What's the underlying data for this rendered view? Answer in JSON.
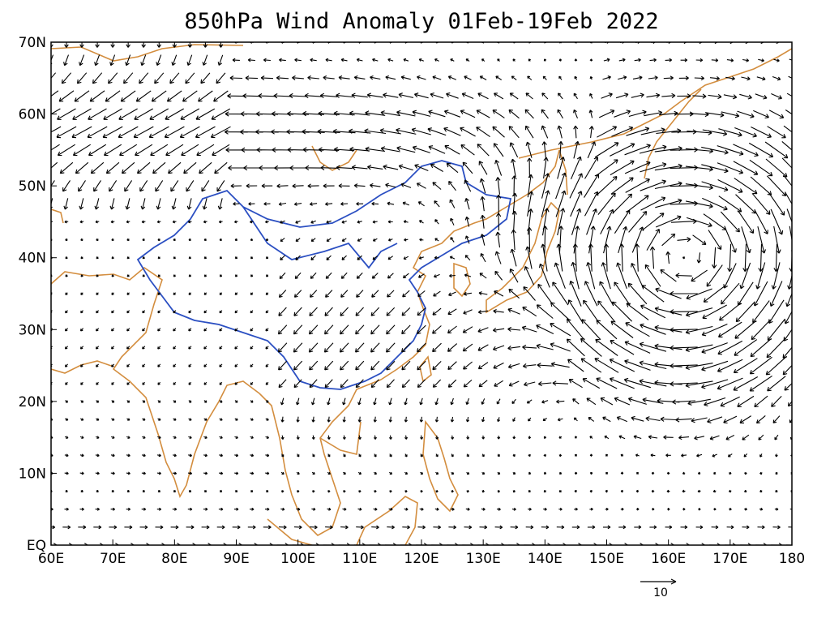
{
  "title": "850hPa Wind Anomaly 01Feb-19Feb 2022",
  "colors": {
    "coastline": "#d38d3e",
    "border": "#2b4fc2",
    "vectors": "#000000",
    "frame": "#000000"
  },
  "map": {
    "lon_range": [
      60,
      180
    ],
    "lat_range": [
      0,
      70
    ],
    "x_ticks": [
      {
        "value": 60,
        "label": "60E"
      },
      {
        "value": 70,
        "label": "70E"
      },
      {
        "value": 80,
        "label": "80E"
      },
      {
        "value": 90,
        "label": "90E"
      },
      {
        "value": 100,
        "label": "100E"
      },
      {
        "value": 110,
        "label": "110E"
      },
      {
        "value": 120,
        "label": "120E"
      },
      {
        "value": 130,
        "label": "130E"
      },
      {
        "value": 140,
        "label": "140E"
      },
      {
        "value": 150,
        "label": "150E"
      },
      {
        "value": 160,
        "label": "160E"
      },
      {
        "value": 170,
        "label": "170E"
      },
      {
        "value": 180,
        "label": "180"
      }
    ],
    "y_ticks": [
      {
        "value": 0,
        "label": "EQ"
      },
      {
        "value": 10,
        "label": "10N"
      },
      {
        "value": 20,
        "label": "20N"
      },
      {
        "value": 30,
        "label": "30N"
      },
      {
        "value": 40,
        "label": "40N"
      },
      {
        "value": 50,
        "label": "50N"
      },
      {
        "value": 60,
        "label": "60N"
      },
      {
        "value": 70,
        "label": "70N"
      }
    ]
  },
  "reference_vector": {
    "magnitude": 10,
    "label": "10"
  },
  "features": {
    "anticyclone_center": {
      "lon": 163,
      "lat": 40
    },
    "westerly_jet_lat": 52
  }
}
